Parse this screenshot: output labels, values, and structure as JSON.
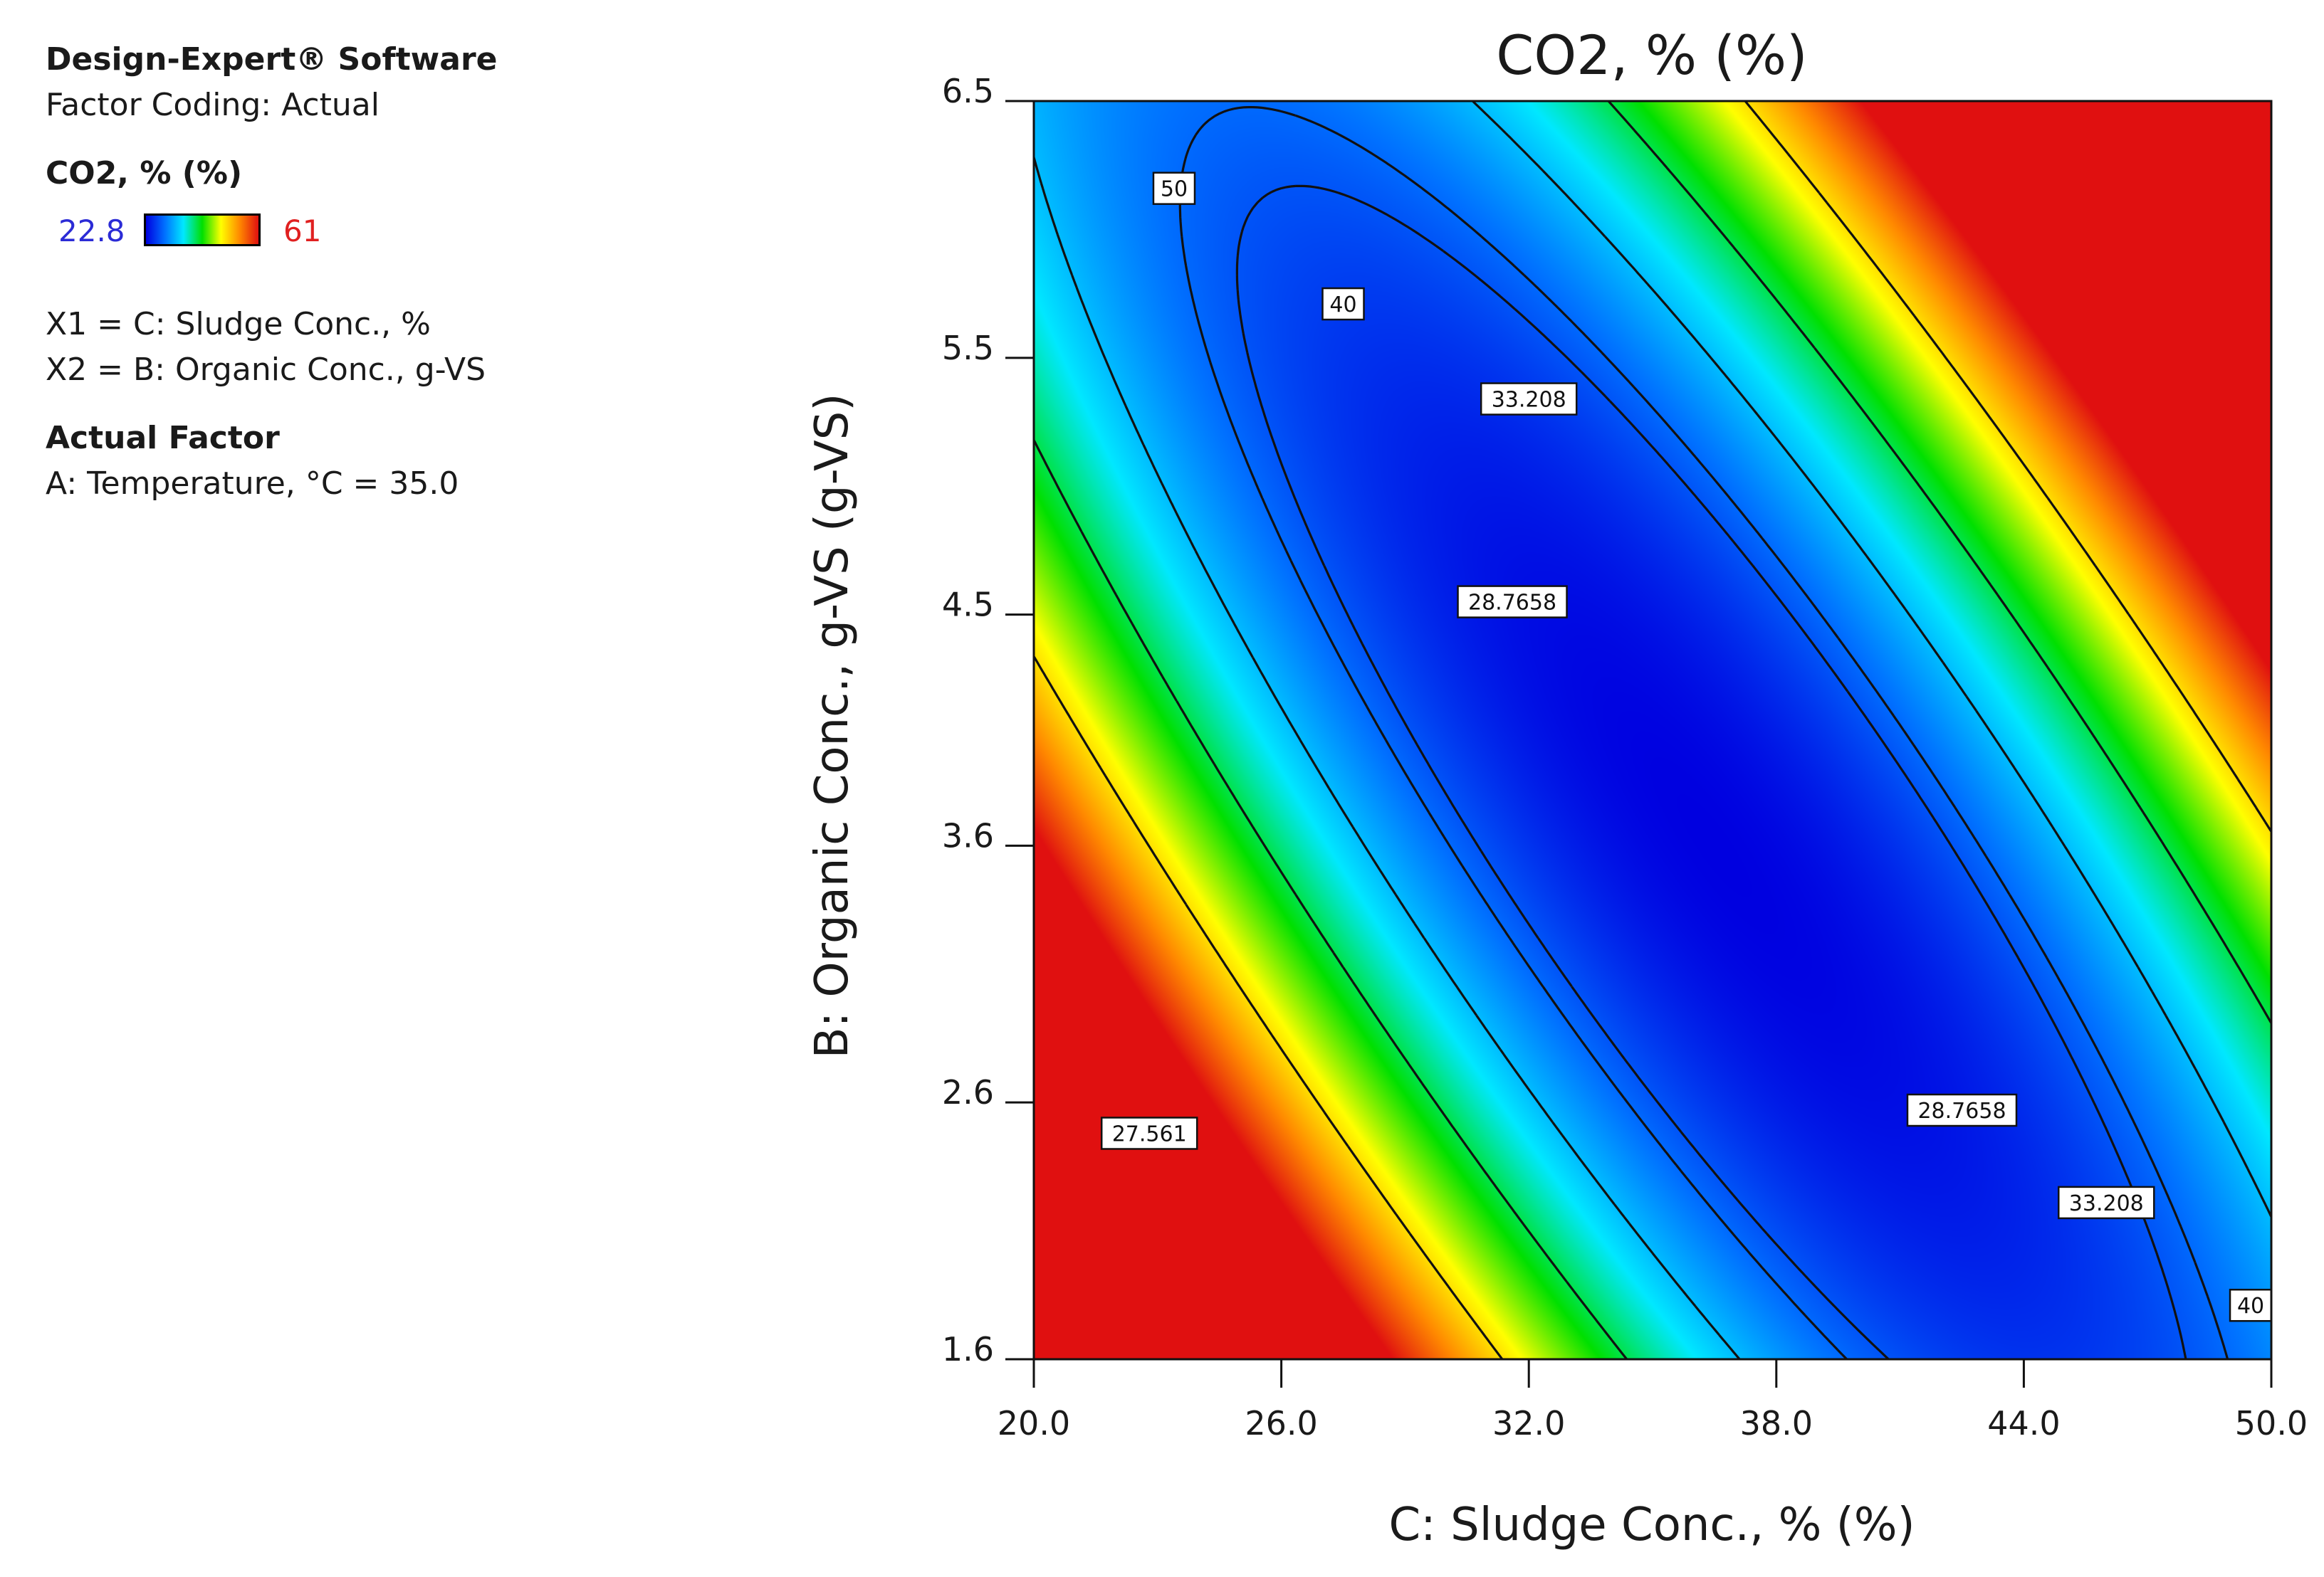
{
  "legend": {
    "software": "Design-Expert® Software",
    "coding": "Factor Coding: Actual",
    "response_title": "CO2, % (%)",
    "scale_min": "22.8",
    "scale_max": "61",
    "x1": "X1 = C: Sludge Conc., %",
    "x2": "X2 = B: Organic Conc., g-VS",
    "actual_factor_title": "Actual Factor",
    "actual_factor_value": "A: Temperature, °C = 35.0"
  },
  "colors": {
    "scale_min_text": "#2b2bd6",
    "scale_max_text": "#e02020",
    "gradient": [
      "#0000e0",
      "#0070ff",
      "#00e8ff",
      "#00e000",
      "#ffff00",
      "#ff8800",
      "#e01010"
    ]
  },
  "chart_data": {
    "type": "contour",
    "title": "CO2, % (%)",
    "xlabel": "C: Sludge Conc., % (%)",
    "ylabel": "B: Organic Conc., g-VS (g-VS)",
    "xlim": [
      20,
      50
    ],
    "ylim": [
      1.6,
      6.5
    ],
    "x_ticks": [
      "20.0",
      "26.0",
      "32.0",
      "38.0",
      "44.0",
      "50.0"
    ],
    "y_ticks": [
      "1.6",
      "2.6",
      "3.6",
      "4.5",
      "5.5",
      "6.5"
    ],
    "response_range": [
      22.8,
      61
    ],
    "model": {
      "center_x": 36.5,
      "center_y": 3.6,
      "min_value": 22.8
    },
    "contour_levels": [
      27.561,
      28.7658,
      33.208,
      40,
      50
    ],
    "contour_labels": [
      {
        "text": "50",
        "x": 23.4,
        "y": 6.16
      },
      {
        "text": "40",
        "x": 27.5,
        "y": 5.71
      },
      {
        "text": "33.208",
        "x": 32.0,
        "y": 5.34
      },
      {
        "text": "28.7658",
        "x": 31.6,
        "y": 4.55
      },
      {
        "text": "27.561",
        "x": 22.8,
        "y": 2.48
      },
      {
        "text": "28.7658",
        "x": 42.5,
        "y": 2.57
      },
      {
        "text": "33.208",
        "x": 46.0,
        "y": 2.21
      },
      {
        "text": "40",
        "x": 49.5,
        "y": 1.81
      }
    ]
  }
}
